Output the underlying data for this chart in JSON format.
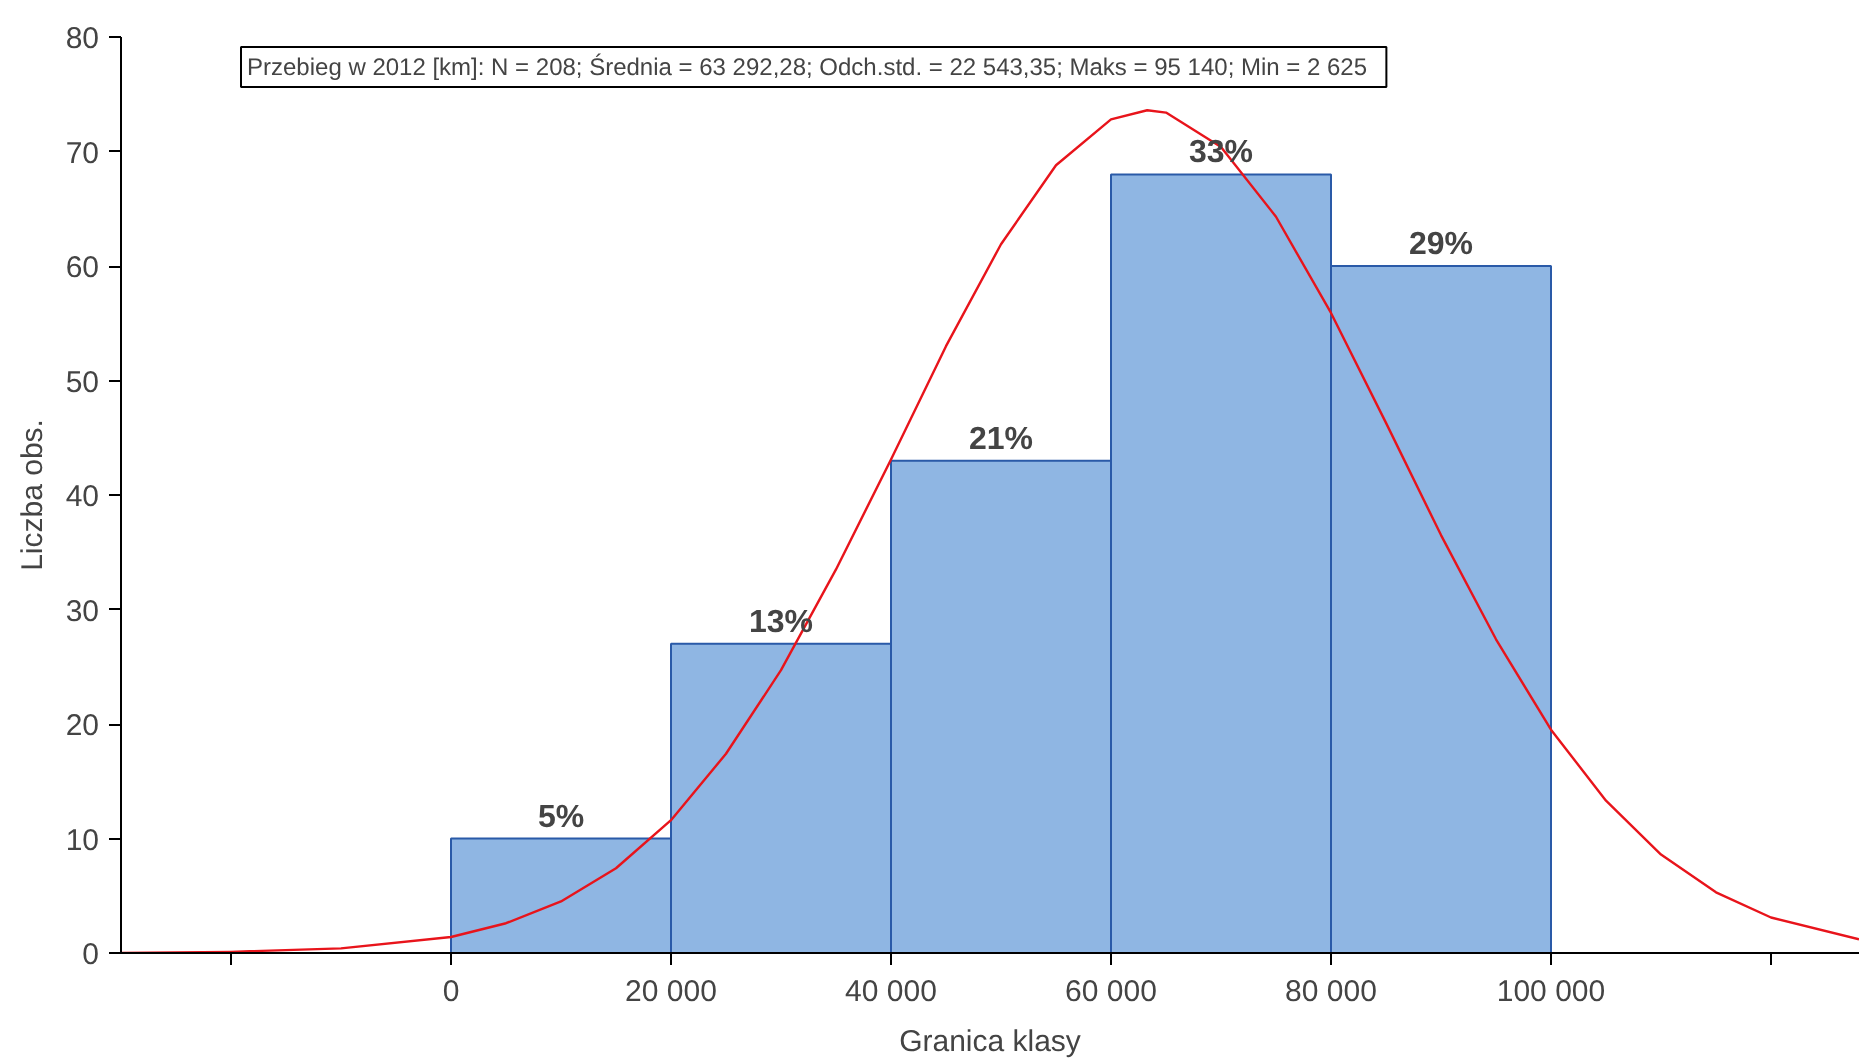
{
  "chart_data": {
    "type": "histogram",
    "xlabel": "Granica klasy",
    "ylabel": "Liczba obs.",
    "annotations": [
      "Przebieg w 2012 [km]:   N = 208; Średnia = 63 292,28; Odch.std. = 22 543,35; Maks = 95 140; Min = 2 625",
      {
        "text": "5%",
        "x": 10000,
        "y": 10
      },
      {
        "text": "13%",
        "x": 30000,
        "y": 27
      },
      {
        "text": "21%",
        "x": 50000,
        "y": 43
      },
      {
        "text": "33%",
        "x": 70000,
        "y": 68
      },
      {
        "text": "29%",
        "x": 90000,
        "y": 60
      }
    ],
    "bins": [
      0,
      20000,
      40000,
      60000,
      80000,
      100000
    ],
    "values": [
      10,
      27,
      43,
      68,
      60
    ],
    "color": "#8fb6e3",
    "series": [
      {
        "type": "line",
        "color": "#e8141b",
        "x": [
          -30000,
          -20000,
          -10000,
          0,
          5000,
          10000,
          15000,
          20000,
          25000,
          30000,
          35000,
          40000,
          45000,
          50000,
          55000,
          60000,
          63292,
          65000,
          70000,
          75000,
          80000,
          85000,
          90000,
          95000,
          100000,
          105000,
          110000,
          115000,
          120000,
          128000
        ],
        "values": [
          0,
          0.1,
          0.4,
          1.4,
          2.6,
          4.5,
          7.4,
          11.6,
          17.4,
          24.7,
          33.5,
          43.1,
          53.0,
          61.9,
          68.8,
          72.8,
          73.6,
          73.4,
          70.4,
          64.3,
          55.9,
          46.3,
          36.5,
          27.4,
          19.5,
          13.3,
          8.6,
          5.3,
          3.1,
          1.2
        ]
      }
    ],
    "xlim": [
      -30000,
      128000
    ],
    "xticks": [
      {
        "value": -20000,
        "label": null
      },
      0,
      {
        "value": 20000,
        "label": "20 000"
      },
      {
        "value": 40000,
        "label": "40 000"
      },
      {
        "value": 60000,
        "label": "60 000"
      },
      {
        "value": 80000,
        "label": "80 000"
      },
      {
        "value": 100000,
        "label": "100 000"
      },
      {
        "value": 120000,
        "label": null
      }
    ],
    "ylim": [
      0,
      80
    ],
    "yticks": [
      0,
      10,
      20,
      30,
      40,
      50,
      60,
      70,
      80
    ],
    "grid": false
  }
}
